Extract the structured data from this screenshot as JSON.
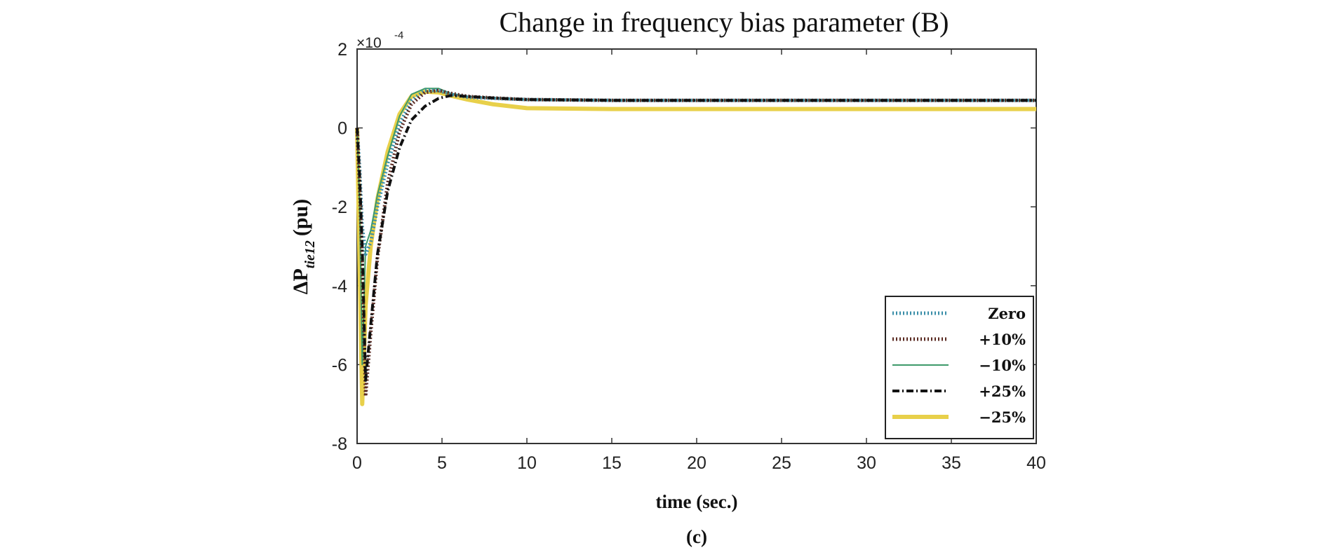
{
  "chart_data": {
    "type": "line",
    "title": "Change in frequency bias parameter (B)",
    "xlabel": "time (sec.)",
    "ylabel_main": "ΔP",
    "ylabel_sub": "tie12",
    "ylabel_unit": "(pu)",
    "caption": "(c)",
    "y_exponent_base": "×10",
    "y_exponent_power": "-4",
    "xlim": [
      0,
      40
    ],
    "ylim": [
      -8,
      2
    ],
    "x_ticks": [
      0,
      5,
      10,
      15,
      20,
      25,
      30,
      35,
      40
    ],
    "y_ticks": [
      -8,
      -6,
      -4,
      -2,
      0,
      2
    ],
    "x_tick_labels": [
      "0",
      "5",
      "10",
      "15",
      "20",
      "25",
      "30",
      "35",
      "40"
    ],
    "y_tick_labels": [
      "-8",
      "-6",
      "-4",
      "-2",
      "0",
      "2"
    ],
    "legend_position": "bottom-right",
    "grid": false,
    "series": [
      {
        "name": "Zero",
        "color": "#3a8ea8",
        "style": "dotted-thick",
        "x": [
          0,
          0.15,
          0.3,
          0.5,
          0.8,
          1.2,
          1.8,
          2.5,
          3.2,
          4.0,
          4.8,
          5.5,
          6.5,
          8,
          10,
          15,
          20,
          25,
          30,
          35,
          40
        ],
        "y": [
          0,
          -1.0,
          -2.5,
          -3.2,
          -2.9,
          -2.0,
          -0.9,
          0.1,
          0.7,
          0.95,
          0.95,
          0.85,
          0.78,
          0.75,
          0.72,
          0.7,
          0.7,
          0.7,
          0.7,
          0.7,
          0.7
        ]
      },
      {
        "name": "+10%",
        "color": "#5a2a22",
        "style": "dotted-thick",
        "x": [
          0,
          0.15,
          0.3,
          0.5,
          0.8,
          1.2,
          1.8,
          2.5,
          3.2,
          4.0,
          4.8,
          5.5,
          6.5,
          8,
          10,
          15,
          20,
          25,
          30,
          35,
          40
        ],
        "y": [
          0,
          -1.5,
          -3.4,
          -6.8,
          -5.2,
          -3.3,
          -1.4,
          -0.1,
          0.6,
          0.9,
          0.95,
          0.88,
          0.8,
          0.76,
          0.72,
          0.7,
          0.7,
          0.7,
          0.7,
          0.7,
          0.7
        ]
      },
      {
        "name": "−10%",
        "color": "#3d9a6a",
        "style": "solid-thin",
        "x": [
          0,
          0.15,
          0.3,
          0.5,
          0.8,
          1.2,
          1.8,
          2.5,
          3.2,
          4.0,
          4.8,
          5.5,
          6.5,
          8,
          10,
          15,
          20,
          25,
          30,
          35,
          40
        ],
        "y": [
          0,
          -2.0,
          -6.0,
          -3.0,
          -2.6,
          -1.7,
          -0.7,
          0.3,
          0.85,
          1.0,
          1.0,
          0.88,
          0.8,
          0.76,
          0.72,
          0.7,
          0.7,
          0.7,
          0.7,
          0.7,
          0.7
        ]
      },
      {
        "name": "+25%",
        "color": "#111111",
        "style": "dashdot",
        "x": [
          0,
          0.15,
          0.3,
          0.5,
          0.8,
          1.2,
          1.8,
          2.5,
          3.2,
          4.0,
          4.8,
          5.5,
          6.5,
          8,
          10,
          15,
          20,
          25,
          30,
          35,
          40
        ],
        "y": [
          0,
          -1.2,
          -3.0,
          -6.4,
          -5.0,
          -3.2,
          -1.6,
          -0.5,
          0.2,
          0.55,
          0.75,
          0.82,
          0.8,
          0.76,
          0.72,
          0.7,
          0.7,
          0.7,
          0.7,
          0.7,
          0.7
        ]
      },
      {
        "name": "−25%",
        "color": "#e8d04a",
        "style": "solid-thick",
        "x": [
          0,
          0.15,
          0.3,
          0.5,
          0.8,
          1.2,
          1.8,
          2.5,
          3.2,
          4.0,
          4.8,
          5.5,
          6.5,
          8,
          10,
          15,
          20,
          25,
          30,
          35,
          40
        ],
        "y": [
          0,
          -3.5,
          -7.0,
          -4.5,
          -3.0,
          -1.8,
          -0.6,
          0.35,
          0.8,
          0.92,
          0.9,
          0.82,
          0.72,
          0.6,
          0.5,
          0.48,
          0.48,
          0.48,
          0.48,
          0.48,
          0.48
        ]
      }
    ]
  }
}
